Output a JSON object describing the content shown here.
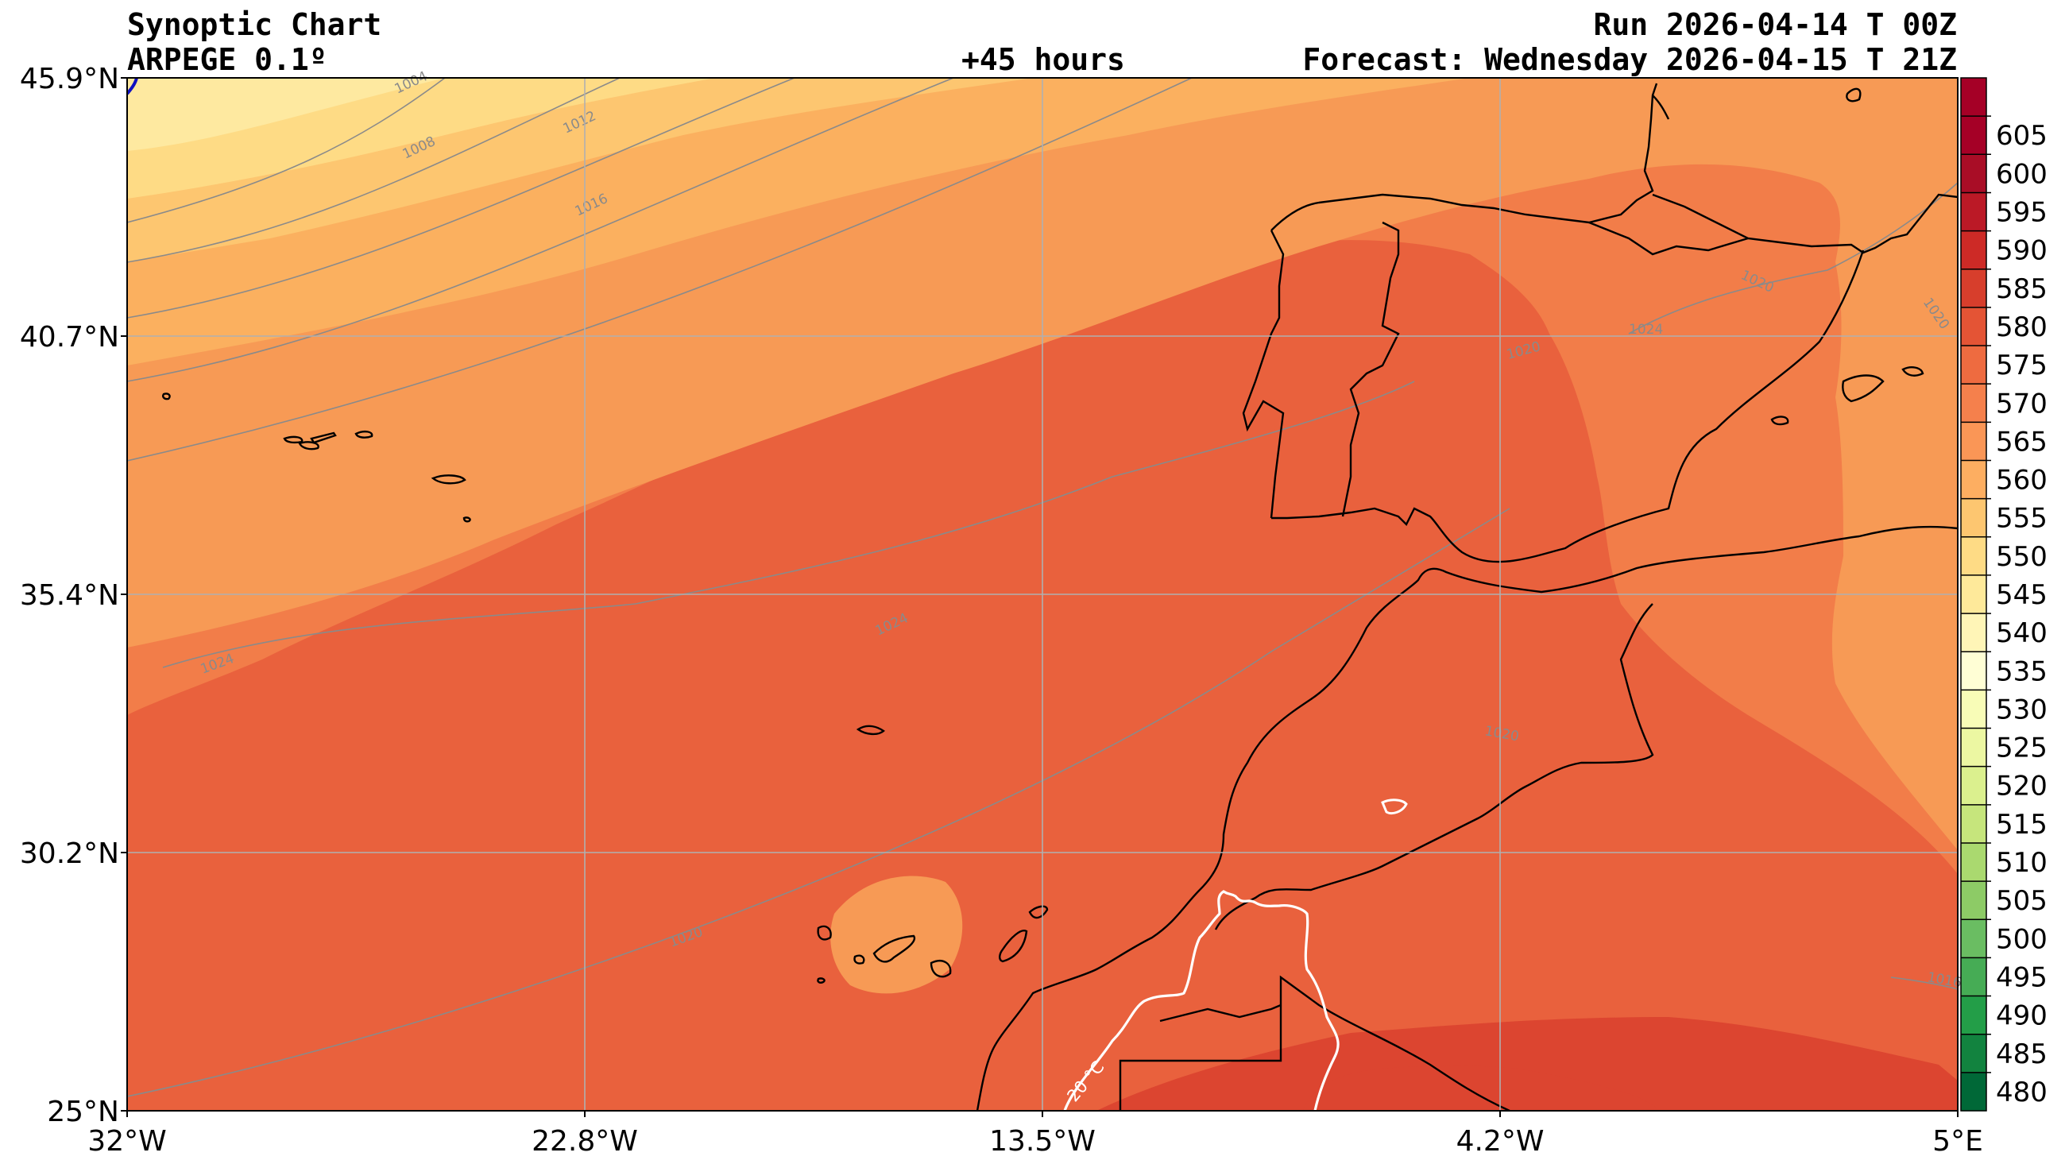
{
  "header": {
    "title": "Synoptic Chart",
    "model": "ARPEGE 0.1º",
    "lead": "+45 hours",
    "run": "Run 2026-04-14 T 00Z",
    "forecast": "Forecast: Wednesday 2026-04-15 T 21Z"
  },
  "axes": {
    "lat_labels": [
      "45.9°N",
      "40.7°N",
      "35.4°N",
      "30.2°N",
      "25°N"
    ],
    "lon_labels": [
      "32°W",
      "22.8°W",
      "13.5°W",
      "4.2°W",
      "5°E"
    ]
  },
  "colorbar": {
    "levels": [
      "480",
      "485",
      "490",
      "495",
      "500",
      "505",
      "510",
      "515",
      "520",
      "525",
      "530",
      "535",
      "540",
      "545",
      "550",
      "555",
      "560",
      "565",
      "570",
      "575",
      "580",
      "585",
      "590",
      "595",
      "600",
      "605"
    ],
    "colors": [
      "#006837",
      "#12833f",
      "#239e48",
      "#46ac55",
      "#6abd62",
      "#8dcb66",
      "#aad96f",
      "#c6e57c",
      "#dbf08e",
      "#ecf7a2",
      "#f8fcb7",
      "#fffed5",
      "#fff5b7",
      "#fee99a",
      "#fedb85",
      "#fdc670",
      "#fdae61",
      "#fa9656",
      "#f5804c",
      "#ee6b40",
      "#e45435",
      "#d73e2c",
      "#cd2a26",
      "#bb1926",
      "#a90d26",
      "#a50026"
    ]
  },
  "annotations": {
    "isotherm_label": "20 °C",
    "isobar_labels": [
      "1004",
      "1008",
      "1012",
      "1016",
      "1020",
      "1020",
      "1020",
      "1024",
      "1024",
      "1020",
      "1020",
      "1016",
      "1024"
    ]
  },
  "map": {
    "field_colors": {
      "c555": "#fee9a0",
      "c560": "#fedb85",
      "c565": "#fdc670",
      "c570": "#fbb05f",
      "c575": "#f79a55",
      "c580": "#f27d49",
      "c585": "#e9613d",
      "c590": "#dc4530"
    },
    "coastline_color": "#000000",
    "isobar_color": "#8a8a8a",
    "isotherm_color": "#ffffff",
    "grid_color": "#b0b0b0"
  }
}
